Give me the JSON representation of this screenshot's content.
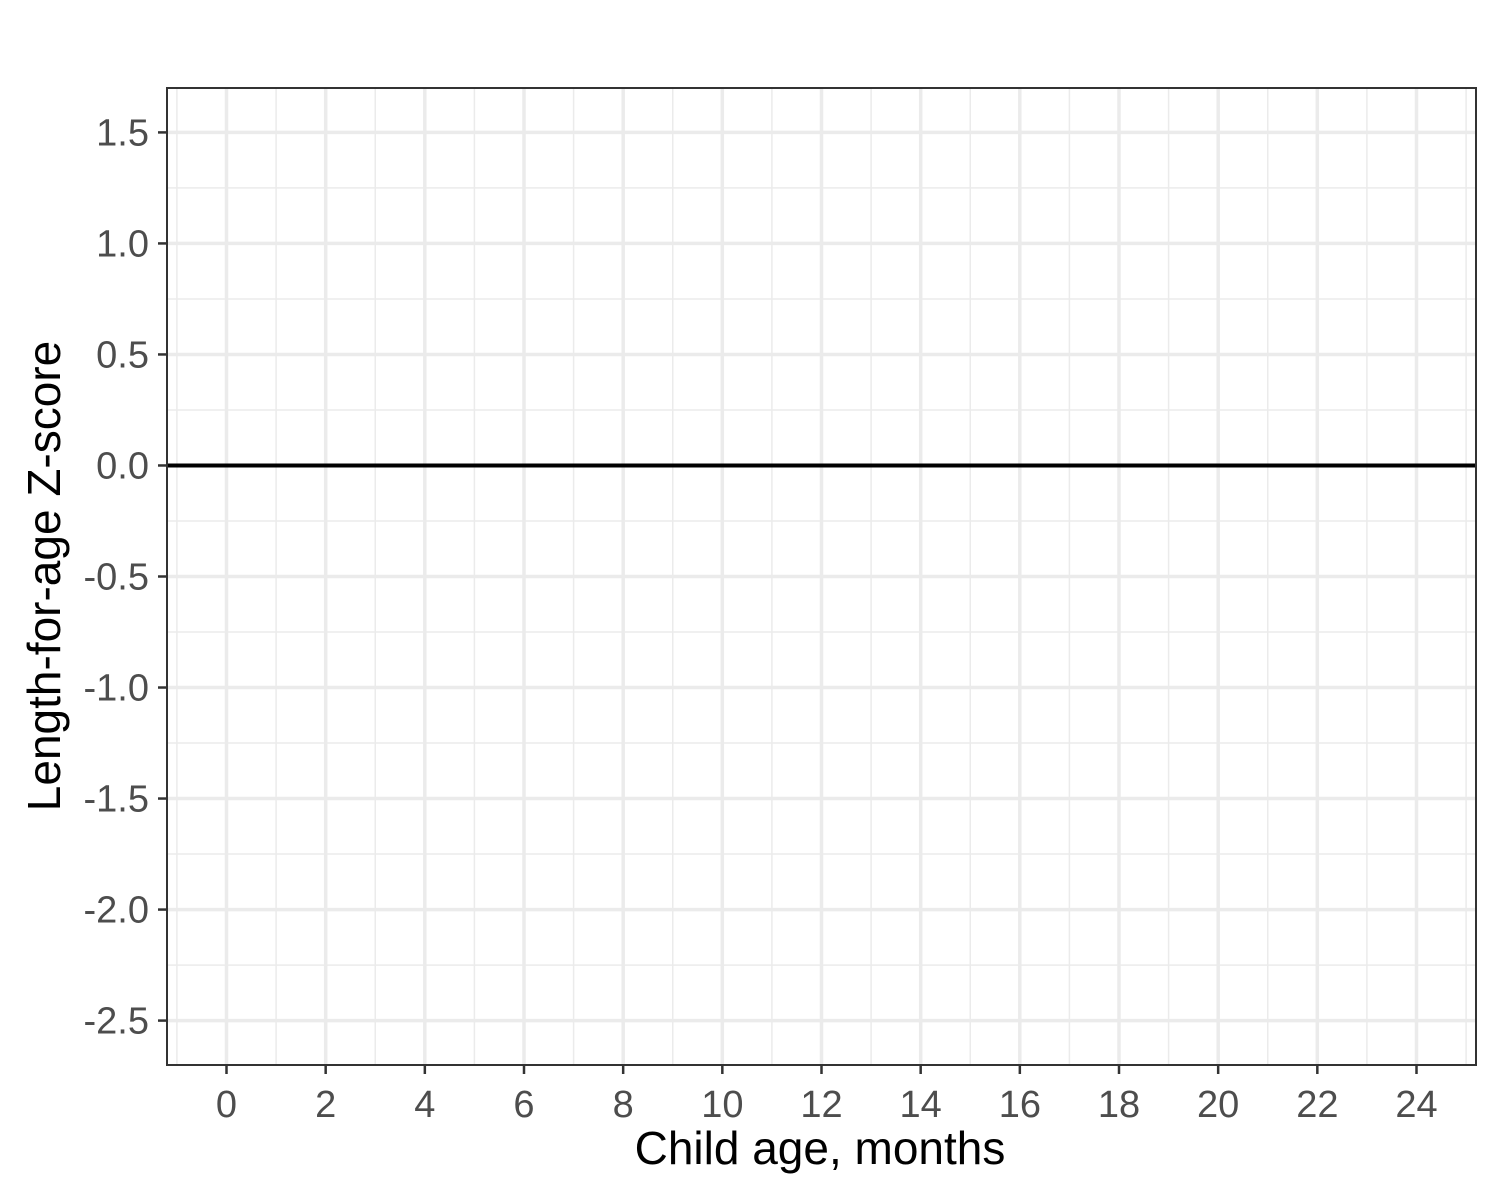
{
  "chart_data": {
    "type": "line",
    "title": "",
    "xlabel": "Child age, months",
    "ylabel": "Length-for-age Z-score",
    "xlim": [
      -1.2,
      25.2
    ],
    "ylim": [
      -2.7,
      1.7
    ],
    "x_ticks": [
      0,
      2,
      4,
      6,
      8,
      10,
      12,
      14,
      16,
      18,
      20,
      22,
      24
    ],
    "x_tick_labels": [
      "0",
      "2",
      "4",
      "6",
      "8",
      "10",
      "12",
      "14",
      "16",
      "18",
      "20",
      "22",
      "24"
    ],
    "y_ticks": [
      1.5,
      1.0,
      0.5,
      0.0,
      -0.5,
      -1.0,
      -1.5,
      -2.0,
      -2.5
    ],
    "y_tick_labels": [
      "1.5",
      "1.0",
      "0.5",
      "0.0",
      "-0.5",
      "-1.0",
      "-1.5",
      "-2.0",
      "-2.5"
    ],
    "reference_lines": [
      {
        "axis": "y",
        "value": 0.0,
        "color": "#000000"
      }
    ],
    "series": [],
    "grid": true,
    "colors": {
      "grid": "#ebebeb",
      "panel_border": "#333333",
      "tick_text": "#4d4d4d"
    }
  }
}
